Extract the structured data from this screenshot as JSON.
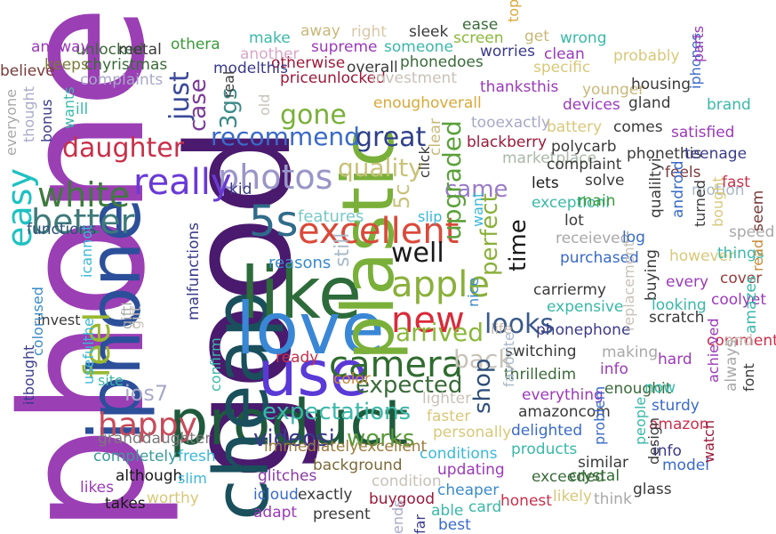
{
  "word_cloud": {
    "words": [
      {
        "text": "phone",
        "color": "#9b3fb5"
      },
      {
        "text": "good",
        "color": "#4a1a6e"
      },
      {
        "text": "iphone",
        "color": "#2c4f9a"
      },
      {
        "text": "product",
        "color": "#1f5a3c"
      },
      {
        "text": "cheap",
        "color": "#1a4f5c"
      },
      {
        "text": "like",
        "color": "#2d6b3a"
      },
      {
        "text": "love",
        "color": "#3a87d6"
      },
      {
        "text": "use",
        "color": "#5a3ad6"
      },
      {
        "text": "plastic",
        "color": "#7ab03a"
      },
      {
        "text": "5s",
        "color": "#2f6b8a"
      },
      {
        "text": "excellent",
        "color": "#d94a3a"
      },
      {
        "text": "camera",
        "color": "#2f6b2f"
      },
      {
        "text": "apple",
        "color": "#8ab03a"
      },
      {
        "text": "new",
        "color": "#d92a3a"
      },
      {
        "text": "well",
        "color": "#1a1a1a"
      },
      {
        "text": "photos",
        "color": "#9a96c8"
      },
      {
        "text": "really",
        "color": "#6a3ad6"
      },
      {
        "text": "better",
        "color": "#3f7a7a"
      },
      {
        "text": "white",
        "color": "#3f7a3f"
      },
      {
        "text": "easy",
        "color": "#1fc1c1"
      },
      {
        "text": "happy",
        "color": "#c84a5a"
      },
      {
        "text": "feel",
        "color": "#9ab830"
      },
      {
        "text": "daughter",
        "color": "#c8304a"
      },
      {
        "text": "recommend",
        "color": "#3a6ac8"
      },
      {
        "text": "great",
        "color": "#2f3f8a"
      },
      {
        "text": "quality",
        "color": "#c8c27a"
      },
      {
        "text": "gone",
        "color": "#7ab03a"
      },
      {
        "text": "just",
        "color": "#3a4a9a"
      },
      {
        "text": "case",
        "color": "#7a3a9a"
      },
      {
        "text": "3gs",
        "color": "#3f8a8a"
      },
      {
        "text": "came",
        "color": "#9a7ac8"
      },
      {
        "text": "upgraded",
        "color": "#5aa03a"
      },
      {
        "text": "perfect",
        "color": "#8ab03a"
      },
      {
        "text": "time",
        "color": "#1a1a1a"
      },
      {
        "text": "5c",
        "color": "#c8c27a"
      },
      {
        "text": "still",
        "color": "#a8b8c8"
      },
      {
        "text": "looks",
        "color": "#3a5a8a"
      },
      {
        "text": "arrived",
        "color": "#8ab83a"
      },
      {
        "text": "back",
        "color": "#c8c2b8"
      },
      {
        "text": "expected",
        "color": "#3a6a3a"
      },
      {
        "text": "expectations",
        "color": "#3ab8a8"
      },
      {
        "text": "videosi",
        "color": "#3a3a8a"
      },
      {
        "text": "works",
        "color": "#5a9a3a"
      },
      {
        "text": "shop",
        "color": "#2f4f7a"
      },
      {
        "text": "ios7",
        "color": "#a8a8c8"
      },
      {
        "text": "features",
        "color": "#7ac8c8"
      },
      {
        "text": "reasons",
        "color": "#3a8ac8"
      },
      {
        "text": "slip",
        "color": "#3ab8d8"
      },
      {
        "text": "want",
        "color": "#3ab8d8"
      },
      {
        "text": "nice",
        "color": "#3a8ac8"
      },
      {
        "text": "giftl",
        "color": "#a8a8a8"
      },
      {
        "text": "life",
        "color": "#c8b8a8"
      },
      {
        "text": "functions",
        "color": "#2f4f7a"
      },
      {
        "text": "malfunctions",
        "color": "#3a3a8a"
      },
      {
        "text": "invest",
        "color": "#3a3a3a"
      },
      {
        "text": "icannot",
        "color": "#3ab8d8"
      },
      {
        "text": "gift",
        "color": "#c8c2b8"
      },
      {
        "text": "colorused",
        "color": "#3a8ac8"
      },
      {
        "text": "itbought",
        "color": "#3a3a8a"
      },
      {
        "text": "usefulthe",
        "color": "#3ab8d8"
      },
      {
        "text": "site",
        "color": "#3ab8a8"
      },
      {
        "text": "granddaughter",
        "color": "#7a7a7a"
      },
      {
        "text": "completely",
        "color": "#3a9a9a"
      },
      {
        "text": "fresh",
        "color": "#3ab8d8"
      },
      {
        "text": "although",
        "color": "#1a1a1a"
      },
      {
        "text": "slim",
        "color": "#3ab8d8"
      },
      {
        "text": "likes",
        "color": "#9a3ab8"
      },
      {
        "text": "takes",
        "color": "#1a1a1a"
      },
      {
        "text": "worthy",
        "color": "#d8c87a"
      },
      {
        "text": "glitches",
        "color": "#8a3aa8"
      },
      {
        "text": "icloud",
        "color": "#3a6ac8"
      },
      {
        "text": "adapt",
        "color": "#9a3ab8"
      },
      {
        "text": "exactly",
        "color": "#3a3a3a"
      },
      {
        "text": "present",
        "color": "#3a3a3a"
      },
      {
        "text": "buygood",
        "color": "#9a1a3a"
      },
      {
        "text": "ends",
        "color": "#a8a8c8"
      },
      {
        "text": "far",
        "color": "#3a3a8a"
      },
      {
        "text": "able",
        "color": "#3ab8a8"
      },
      {
        "text": "best",
        "color": "#3a6ac8"
      },
      {
        "text": "card",
        "color": "#3ab8a8"
      },
      {
        "text": "cheaper",
        "color": "#3a8ac8"
      },
      {
        "text": "honest",
        "color": "#c8304a"
      },
      {
        "text": "likely",
        "color": "#d8c87a"
      },
      {
        "text": "think",
        "color": "#a8a8a8"
      },
      {
        "text": "glass",
        "color": "#3a3a3a"
      },
      {
        "text": "crystal",
        "color": "#2f6b2f"
      },
      {
        "text": "exceeded",
        "color": "#3a6a3a"
      },
      {
        "text": "similar",
        "color": "#3a3a3a"
      },
      {
        "text": "updating",
        "color": "#9a3ab8"
      },
      {
        "text": "condition",
        "color": "#c8c2b8"
      },
      {
        "text": "conditions",
        "color": "#3ab8d8"
      },
      {
        "text": "products",
        "color": "#3ab8a8"
      },
      {
        "text": "background",
        "color": "#7a6a3a"
      },
      {
        "text": "immediatelyexcellent",
        "color": "#9a7a3a"
      },
      {
        "text": "smartphone",
        "color": "#3a8ac8"
      },
      {
        "text": "delighted",
        "color": "#3a6ac8"
      },
      {
        "text": "personally",
        "color": "#d8c87a"
      },
      {
        "text": "faster",
        "color": "#d8c87a"
      },
      {
        "text": "lighter",
        "color": "#c8c2b8"
      },
      {
        "text": "amazoncom",
        "color": "#3a3a3a"
      },
      {
        "text": "everything",
        "color": "#9a3ab8"
      },
      {
        "text": "thrilledim",
        "color": "#3a6a3a"
      },
      {
        "text": "switching",
        "color": "#3a3a3a"
      },
      {
        "text": "phonephone",
        "color": "#3a3a8a"
      },
      {
        "text": "expensive",
        "color": "#3ab8a8"
      },
      {
        "text": "carriermy",
        "color": "#3a3a3a"
      },
      {
        "text": "purchased",
        "color": "#3a6ac8"
      },
      {
        "text": "receieved",
        "color": "#a8a8a8"
      },
      {
        "text": "lot",
        "color": "#3a3a3a"
      },
      {
        "text": "exceptioni",
        "color": "#3ab8a8"
      },
      {
        "text": "lets",
        "color": "#1a1a1a"
      },
      {
        "text": "marketplace",
        "color": "#a8b8a8"
      },
      {
        "text": "blackberry",
        "color": "#9a1a3a"
      },
      {
        "text": "tooexactly",
        "color": "#a8a8c8"
      },
      {
        "text": "thanksthis",
        "color": "#9a3ab8"
      },
      {
        "text": "smartphone",
        "color": "#3a3a8a"
      },
      {
        "text": "priceunlocked",
        "color": "#9a1a3a"
      },
      {
        "text": "enoughoverall",
        "color": "#d8a83a"
      },
      {
        "text": "investment",
        "color": "#c8c2b8"
      },
      {
        "text": "phonedoes",
        "color": "#3a6a3a"
      },
      {
        "text": "overall",
        "color": "#3a3a3a"
      },
      {
        "text": "otherwise",
        "color": "#9a1a3a"
      },
      {
        "text": "modelthis",
        "color": "#3a3a8a"
      },
      {
        "text": "supreme",
        "color": "#9a3ab8"
      },
      {
        "text": "another",
        "color": "#d8a8c8"
      },
      {
        "text": "make",
        "color": "#3ab8a8"
      },
      {
        "text": "away",
        "color": "#c8b87a"
      },
      {
        "text": "right",
        "color": "#d8c8a8"
      },
      {
        "text": "sleek",
        "color": "#3a3a3a"
      },
      {
        "text": "someone",
        "color": "#3ab8a8"
      },
      {
        "text": "ease",
        "color": "#3a6a3a"
      },
      {
        "text": "screen",
        "color": "#8ab83a"
      },
      {
        "text": "top",
        "color": "#d8a83a"
      },
      {
        "text": "get",
        "color": "#c8b87a"
      },
      {
        "text": "wrong",
        "color": "#3ab8a8"
      },
      {
        "text": "worries",
        "color": "#3a3a8a"
      },
      {
        "text": "clean",
        "color": "#9a3ab8"
      },
      {
        "text": "specific",
        "color": "#d8c87a"
      },
      {
        "text": "younger",
        "color": "#c8b87a"
      },
      {
        "text": "devices",
        "color": "#9a3ab8"
      },
      {
        "text": "probably",
        "color": "#d8c87a"
      },
      {
        "text": "housing",
        "color": "#3a3a3a"
      },
      {
        "text": "gland",
        "color": "#3a3a3a"
      },
      {
        "text": "iphones",
        "color": "#3a6ac8"
      },
      {
        "text": "parts",
        "color": "#9a3ab8"
      },
      {
        "text": "brand",
        "color": "#3ab8a8"
      },
      {
        "text": "comes",
        "color": "#3a3a3a"
      },
      {
        "text": "battery",
        "color": "#d8c87a"
      },
      {
        "text": "polycarb",
        "color": "#3a3a3a"
      },
      {
        "text": "complaint",
        "color": "#3a3a3a"
      },
      {
        "text": "satisfied",
        "color": "#9a3ab8"
      },
      {
        "text": "solve",
        "color": "#3a3a3a"
      },
      {
        "text": "phonethis",
        "color": "#3a3a3a"
      },
      {
        "text": "teenage",
        "color": "#3a3a8a"
      },
      {
        "text": "feels",
        "color": "#7a3a3a"
      },
      {
        "text": "motion",
        "color": "#a8b8c8"
      },
      {
        "text": "fast",
        "color": "#c8304a"
      },
      {
        "text": "main",
        "color": "#3a9a3a"
      },
      {
        "text": "qualiltyi",
        "color": "#3a3a3a"
      },
      {
        "text": "android",
        "color": "#3a6ac8"
      },
      {
        "text": "turned",
        "color": "#3a3a3a"
      },
      {
        "text": "bought",
        "color": "#d8c87a"
      },
      {
        "text": "speed",
        "color": "#a8a8a8"
      },
      {
        "text": "seem",
        "color": "#7a3a3a"
      },
      {
        "text": "log",
        "color": "#3a6ac8"
      },
      {
        "text": "however",
        "color": "#d8c87a"
      },
      {
        "text": "things",
        "color": "#3ab8a8"
      },
      {
        "text": "cover",
        "color": "#9a3a3a"
      },
      {
        "text": "read",
        "color": "#c8883a"
      },
      {
        "text": "coolyet",
        "color": "#9a3ab8"
      },
      {
        "text": "every",
        "color": "#9a3ab8"
      },
      {
        "text": "buying",
        "color": "#3a3a3a"
      },
      {
        "text": "looking",
        "color": "#3ab8a8"
      },
      {
        "text": "scratch",
        "color": "#3a3a3a"
      },
      {
        "text": "comment",
        "color": "#c8304a"
      },
      {
        "text": "amazes",
        "color": "#3ab8a8"
      },
      {
        "text": "and",
        "color": "#c8c2b8"
      },
      {
        "text": "hard",
        "color": "#9a3ab8"
      },
      {
        "text": "making",
        "color": "#a8a8a8"
      },
      {
        "text": "info",
        "color": "#9a3ab8"
      },
      {
        "text": "enoughit",
        "color": "#3a6a3a"
      },
      {
        "text": "achieved",
        "color": "#9a3ab8"
      },
      {
        "text": "always",
        "color": "#a8a8a8"
      },
      {
        "text": "font",
        "color": "#3a3a3a"
      },
      {
        "text": "now",
        "color": "#3ab8a8"
      },
      {
        "text": "sturdy",
        "color": "#3a6ac8"
      },
      {
        "text": "amazon",
        "color": "#c8304a"
      },
      {
        "text": "people",
        "color": "#3ab8a8"
      },
      {
        "text": "design",
        "color": "#3a3a3a"
      },
      {
        "text": "problem",
        "color": "#3a6ac8"
      },
      {
        "text": "batteries",
        "color": "#3a6ac8"
      },
      {
        "text": "info",
        "color": "#3a3a8a"
      },
      {
        "text": "model",
        "color": "#3a6ac8"
      },
      {
        "text": "watch",
        "color": "#9a1a3a"
      },
      {
        "text": "ready",
        "color": "#c8304a"
      },
      {
        "text": "color",
        "color": "#c8883a"
      },
      {
        "text": "kid",
        "color": "#3a3a8a"
      },
      {
        "text": "real",
        "color": "#3a3a3a"
      },
      {
        "text": "old",
        "color": "#c8c2b8"
      },
      {
        "text": "clear",
        "color": "#c8b87a"
      },
      {
        "text": "click",
        "color": "#3a3a3a"
      },
      {
        "text": "ill",
        "color": "#3ab8a8"
      },
      {
        "text": "complaints",
        "color": "#a8a8c8"
      },
      {
        "text": "chyristmas",
        "color": "#3a6a3a"
      },
      {
        "text": "unlocked",
        "color": "#3a6a3a"
      },
      {
        "text": "metal",
        "color": "#3a3a3a"
      },
      {
        "text": "othera",
        "color": "#3a9a3a"
      },
      {
        "text": "anyway",
        "color": "#9a3ab8"
      },
      {
        "text": "keeps",
        "color": "#7a7a3a"
      },
      {
        "text": "believe",
        "color": "#7a3a3a"
      },
      {
        "text": "wants",
        "color": "#3ab8a8"
      },
      {
        "text": "bonus",
        "color": "#3a3a8a"
      },
      {
        "text": "everyone",
        "color": "#a8a8a8"
      },
      {
        "text": "thought",
        "color": "#a8a8c8"
      },
      {
        "text": "favorite",
        "color": "#a8b8c8"
      },
      {
        "text": "replacement",
        "color": "#c8c2b8"
      },
      {
        "text": "confirm",
        "color": "#3ab8a8"
      },
      {
        "text": "short",
        "color": "#c8c2b8"
      }
    ]
  }
}
